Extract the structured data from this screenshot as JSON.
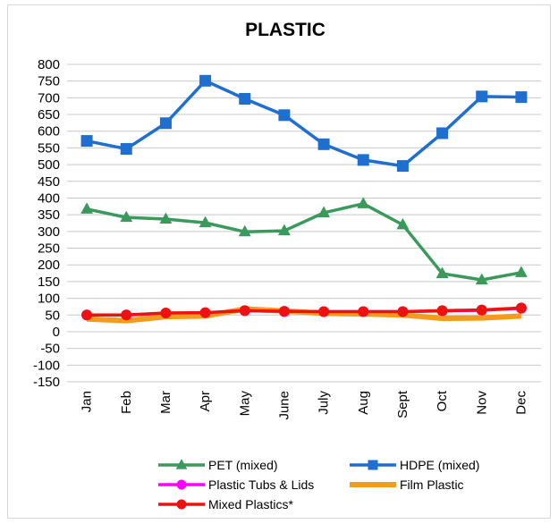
{
  "chart_data": {
    "type": "line",
    "title": "PLASTIC",
    "xlabel": "",
    "ylabel": "",
    "ylim": [
      -150,
      800
    ],
    "ytick_step": 50,
    "grid": true,
    "legend_position": "bottom",
    "categories": [
      "Jan",
      "Feb",
      "Mar",
      "Apr",
      "May",
      "June",
      "July",
      "Aug",
      "Sept",
      "Oct",
      "Nov",
      "Dec"
    ],
    "series": [
      {
        "name": "PET (mixed)",
        "color": "#3a9a5b",
        "marker": "triangle",
        "values": [
          367,
          342,
          337,
          326,
          299,
          302,
          356,
          383,
          320,
          174,
          155,
          177
        ]
      },
      {
        "name": "HDPE (mixed)",
        "color": "#1f6fd1",
        "marker": "square",
        "values": [
          571,
          547,
          624,
          751,
          697,
          648,
          561,
          514,
          496,
          594,
          704,
          702
        ]
      },
      {
        "name": "Plastic Tubs & Lids",
        "color": "#ff00ff",
        "marker": "circle",
        "values": [
          50,
          50,
          55,
          56,
          63,
          60,
          60,
          60,
          60,
          62,
          64,
          70
        ]
      },
      {
        "name": "Film Plastic",
        "color": "#f59b1c",
        "marker": "none",
        "values": [
          38,
          33,
          45,
          47,
          68,
          62,
          55,
          53,
          50,
          40,
          41,
          47
        ]
      },
      {
        "name": "Mixed Plastics*",
        "color": "#ee1111",
        "marker": "circle",
        "values": [
          50,
          50,
          56,
          57,
          63,
          61,
          60,
          60,
          60,
          63,
          65,
          71
        ]
      }
    ]
  }
}
